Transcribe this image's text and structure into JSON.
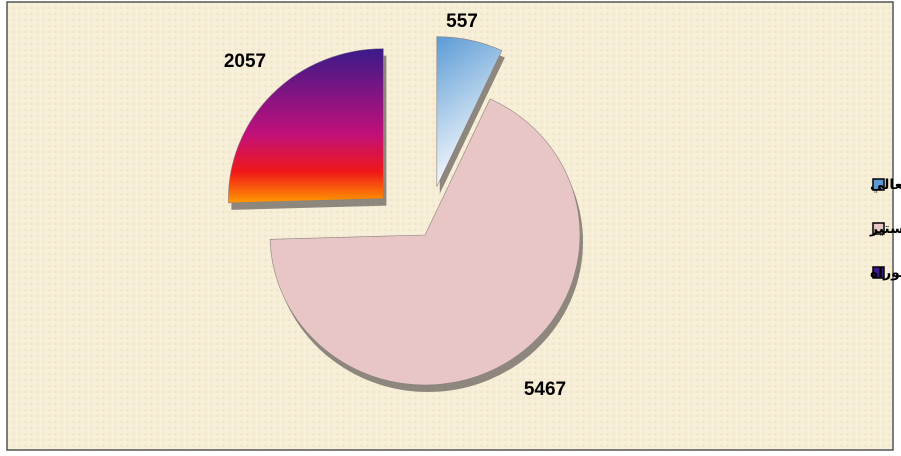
{
  "chart_data": {
    "type": "pie",
    "categories": [
      "الدبلوم العالي",
      "الماجستير",
      "الدكتوراه"
    ],
    "values": [
      557,
      5467,
      2057
    ],
    "colors": [
      "#5b9bd5",
      "#e8c6c6",
      "#3a1a8a"
    ],
    "legend": "right"
  }
}
